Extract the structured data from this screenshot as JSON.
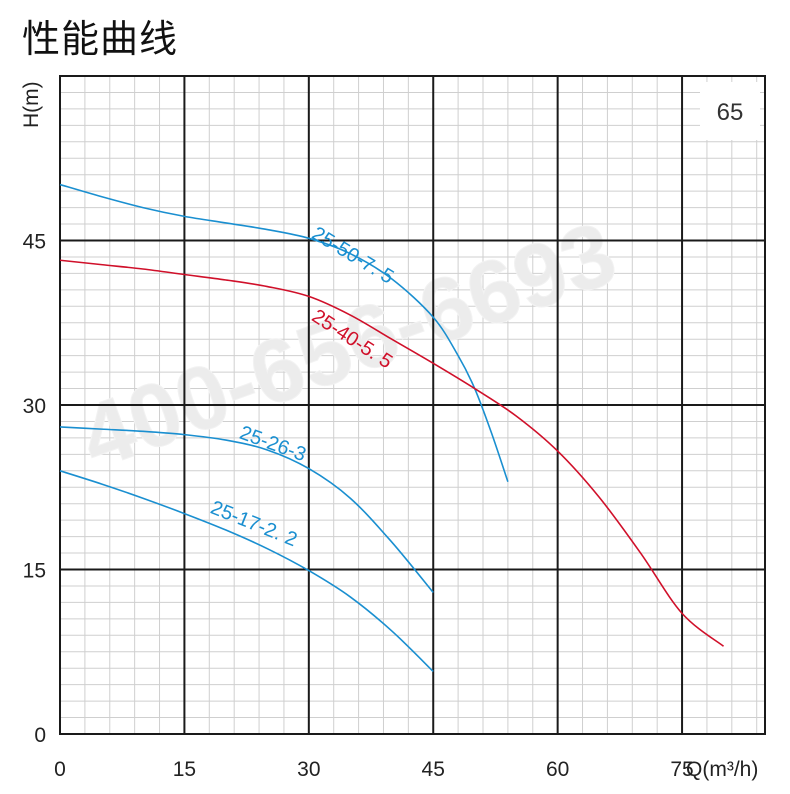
{
  "page": {
    "title": "性能曲线"
  },
  "badge": {
    "text": "65"
  },
  "watermark": {
    "text": "400-656-6693"
  },
  "chart_data": {
    "type": "line",
    "xlabel": "Q(m³/h)",
    "ylabel": "H(m)",
    "xlim": [
      0,
      85
    ],
    "ylim": [
      0,
      60
    ],
    "xticks": [
      0,
      15,
      30,
      45,
      60,
      75
    ],
    "yticks": [
      0,
      15,
      30,
      45
    ],
    "minor_grid": true,
    "series": [
      {
        "name": "25-50-7.5",
        "color": "#1a8fd0",
        "points": [
          [
            0,
            50.1
          ],
          [
            5,
            49
          ],
          [
            10,
            48
          ],
          [
            15,
            47.2
          ],
          [
            20,
            46.6
          ],
          [
            25,
            46
          ],
          [
            30,
            45.2
          ],
          [
            35,
            43.8
          ],
          [
            40,
            41.5
          ],
          [
            45,
            38
          ],
          [
            48,
            34.5
          ],
          [
            50,
            31.5
          ],
          [
            52,
            27.5
          ],
          [
            54,
            23
          ]
        ]
      },
      {
        "name": "25-40-5.5",
        "color": "#d0102a",
        "points": [
          [
            0,
            43.2
          ],
          [
            5,
            42.8
          ],
          [
            10,
            42.4
          ],
          [
            15,
            41.9
          ],
          [
            20,
            41.4
          ],
          [
            25,
            40.8
          ],
          [
            30,
            39.9
          ],
          [
            35,
            38.2
          ],
          [
            40,
            36
          ],
          [
            45,
            33.8
          ],
          [
            50,
            31.5
          ],
          [
            55,
            29
          ],
          [
            60,
            25.8
          ],
          [
            65,
            21.6
          ],
          [
            70,
            16.5
          ],
          [
            75,
            11
          ],
          [
            80,
            8
          ]
        ]
      },
      {
        "name": "25-26-3",
        "color": "#1a8fd0",
        "points": [
          [
            0,
            28
          ],
          [
            5,
            27.8
          ],
          [
            10,
            27.6
          ],
          [
            15,
            27.3
          ],
          [
            20,
            26.8
          ],
          [
            25,
            25.9
          ],
          [
            30,
            24.2
          ],
          [
            35,
            21.5
          ],
          [
            40,
            17.5
          ],
          [
            45,
            12.9
          ]
        ]
      },
      {
        "name": "25-17-2.2",
        "color": "#1a8fd0",
        "points": [
          [
            0,
            24
          ],
          [
            5,
            22.8
          ],
          [
            10,
            21.5
          ],
          [
            15,
            20.1
          ],
          [
            20,
            18.6
          ],
          [
            25,
            16.9
          ],
          [
            30,
            14.9
          ],
          [
            35,
            12.5
          ],
          [
            40,
            9.4
          ],
          [
            45,
            5.7
          ]
        ]
      }
    ],
    "curve_labels": [
      {
        "text": "25-50-7. 5",
        "color": "#1a8fd0",
        "x": 30.2,
        "y": 45.3,
        "rotate": 31
      },
      {
        "text": "25-40-5. 5",
        "color": "#d0102a",
        "x": 30.2,
        "y": 37.8,
        "rotate": 33
      },
      {
        "text": "25-26-3",
        "color": "#1a8fd0",
        "x": 21.5,
        "y": 27.0,
        "rotate": 20
      },
      {
        "text": "25-17-2. 2",
        "color": "#1a8fd0",
        "x": 18,
        "y": 20.2,
        "rotate": 22
      }
    ]
  }
}
